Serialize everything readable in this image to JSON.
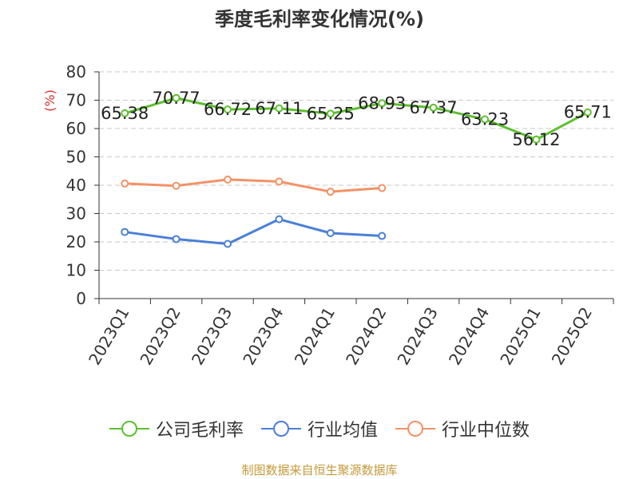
{
  "chart_data": {
    "type": "line",
    "title": "季度毛利率变化情况(%)",
    "ylabel": "(%)",
    "xlabel": "",
    "ylim": [
      0,
      80
    ],
    "yticks": [
      0,
      10,
      20,
      30,
      40,
      50,
      60,
      70,
      80
    ],
    "grid": true,
    "legend_position": "bottom",
    "categories": [
      "2023Q1",
      "2023Q2",
      "2023Q3",
      "2023Q4",
      "2024Q1",
      "2024Q2",
      "2024Q3",
      "2024Q4",
      "2025Q1",
      "2025Q2"
    ],
    "series": [
      {
        "name": "公司毛利率",
        "color": "#5cc02e",
        "show_labels": true,
        "values": [
          65.38,
          70.77,
          66.72,
          67.11,
          65.25,
          68.93,
          67.37,
          63.23,
          56.12,
          65.71
        ],
        "labels": [
          "65.38",
          "70.77",
          "66.72",
          "67.11",
          "65.25",
          "68.93",
          "67.37",
          "63.23",
          "56.12",
          "65.71"
        ]
      },
      {
        "name": "行业均值",
        "color": "#4a7fd9",
        "show_labels": false,
        "values": [
          23.5,
          21.0,
          19.3,
          28.0,
          23.1,
          22.1,
          null,
          null,
          null,
          null
        ]
      },
      {
        "name": "行业中位数",
        "color": "#f39266",
        "show_labels": false,
        "values": [
          40.6,
          39.8,
          42.0,
          41.3,
          37.7,
          39.0,
          null,
          null,
          null,
          null
        ]
      }
    ]
  },
  "source_note": "制图数据来自恒生聚源数据库"
}
